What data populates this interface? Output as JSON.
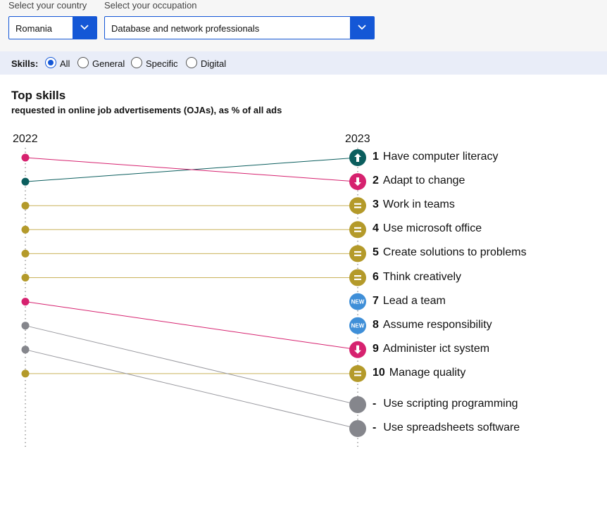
{
  "filters": {
    "country_label": "Select your country",
    "country_value": "Romania",
    "occupation_label": "Select your occupation",
    "occupation_value": "Database and network professionals",
    "accent_color": "#1457d6"
  },
  "skills_filter": {
    "title": "Skills:",
    "options": [
      "All",
      "General",
      "Specific",
      "Digital"
    ],
    "selected": "All"
  },
  "heading": {
    "title": "Top skills",
    "subtitle": "requested in online job advertisements (OJAs), as % of all ads"
  },
  "chart_data": {
    "type": "slope",
    "years": [
      "2022",
      "2023"
    ],
    "status_colors": {
      "up": "#0b5e5e",
      "down": "#d6226f",
      "same": "#b49a2a",
      "new": "#3f8fd8",
      "dropped": "#85868c"
    },
    "skills": [
      {
        "rank_2023": "1",
        "name": "Have computer literacy",
        "rank_2022": 2,
        "status": "up"
      },
      {
        "rank_2023": "2",
        "name": "Adapt to change",
        "rank_2022": 1,
        "status": "down"
      },
      {
        "rank_2023": "3",
        "name": "Work in teams",
        "rank_2022": 3,
        "status": "same"
      },
      {
        "rank_2023": "4",
        "name": "Use microsoft office",
        "rank_2022": 4,
        "status": "same"
      },
      {
        "rank_2023": "5",
        "name": "Create solutions to problems",
        "rank_2022": 5,
        "status": "same"
      },
      {
        "rank_2023": "6",
        "name": "Think creatively",
        "rank_2022": 6,
        "status": "same"
      },
      {
        "rank_2023": "7",
        "name": "Lead a team",
        "rank_2022": null,
        "status": "new"
      },
      {
        "rank_2023": "8",
        "name": "Assume responsibility",
        "rank_2022": null,
        "status": "new"
      },
      {
        "rank_2023": "9",
        "name": "Administer ict system",
        "rank_2022": 7,
        "status": "down"
      },
      {
        "rank_2023": "10",
        "name": "Manage quality",
        "rank_2022": 10,
        "status": "same"
      },
      {
        "rank_2023": "-",
        "name": "Use scripting programming",
        "rank_2022": 8,
        "status": "dropped"
      },
      {
        "rank_2023": "-",
        "name": "Use spreadsheets software",
        "rank_2022": 9,
        "status": "dropped"
      }
    ],
    "new_badge_label": "NEW"
  }
}
